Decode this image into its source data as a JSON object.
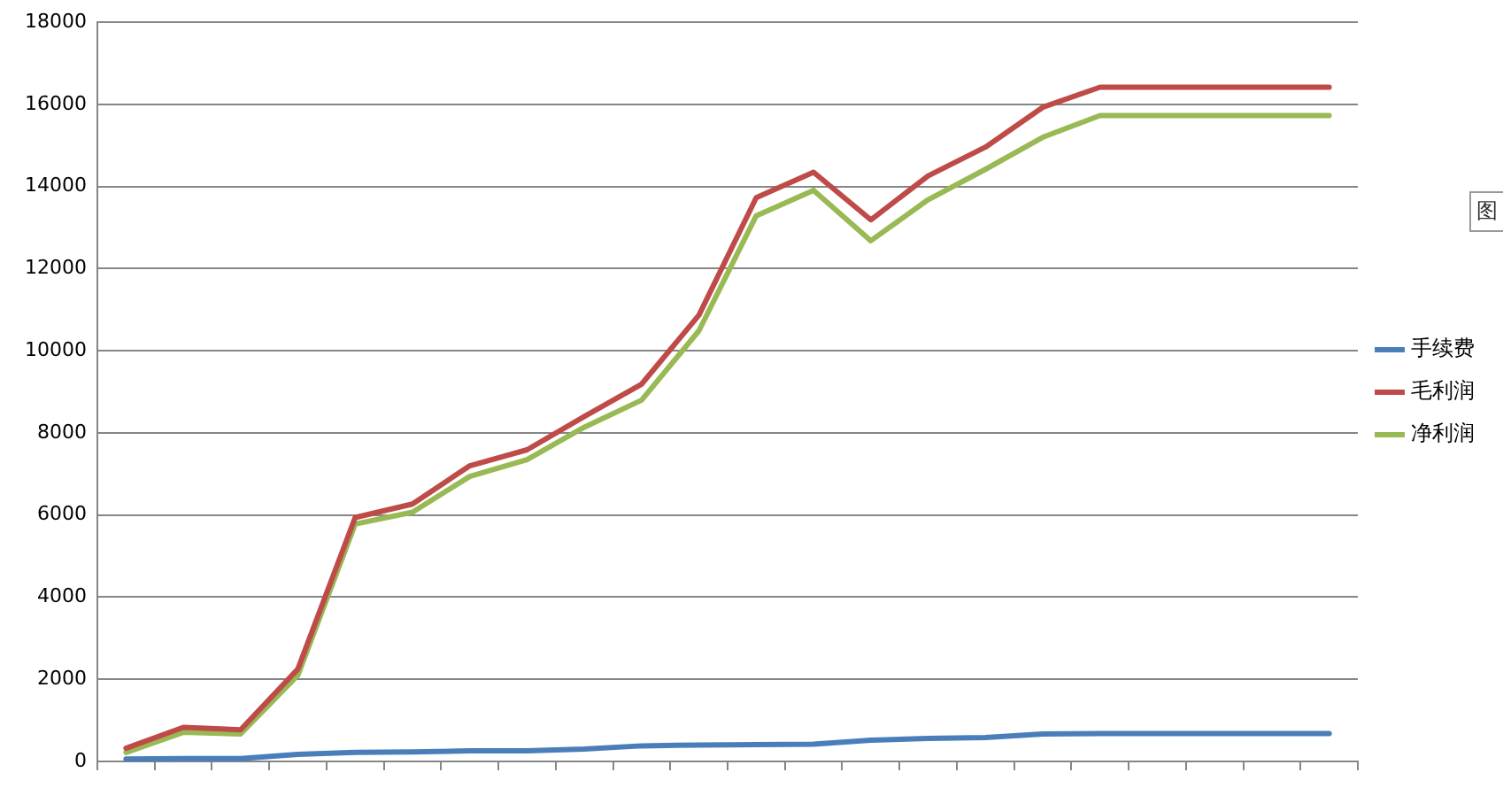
{
  "chart_data": {
    "type": "line",
    "categories": [
      null,
      null,
      null,
      null,
      null,
      null,
      null,
      null,
      null,
      null,
      null,
      null,
      null,
      null,
      null,
      null,
      null,
      null,
      null,
      null,
      null,
      null
    ],
    "series": [
      {
        "name": "手续费",
        "color": "#4a7ebb",
        "values": [
          60,
          70,
          70,
          170,
          220,
          230,
          260,
          260,
          300,
          380,
          400,
          410,
          420,
          520,
          560,
          580,
          670,
          680,
          680,
          680,
          680,
          680
        ]
      },
      {
        "name": "毛利润",
        "color": "#be4b48",
        "values": [
          320,
          830,
          770,
          2250,
          5940,
          6270,
          7200,
          7590,
          8400,
          9190,
          10870,
          13730,
          14350,
          13190,
          14260,
          14960,
          15930,
          16420,
          16420,
          16420,
          16420,
          16420
        ]
      },
      {
        "name": "净利润",
        "color": "#98b954",
        "values": [
          220,
          710,
          670,
          2100,
          5780,
          6070,
          6940,
          7350,
          8140,
          8800,
          10490,
          13290,
          13910,
          12680,
          13680,
          14420,
          15200,
          15730,
          15730,
          15730,
          15730,
          15730
        ]
      }
    ],
    "ylim": [
      0,
      18000
    ],
    "yticks": [
      0,
      2000,
      4000,
      6000,
      8000,
      10000,
      12000,
      14000,
      16000,
      18000
    ],
    "grid": "y",
    "legend": "right",
    "tick_labels": "y",
    "marker": "none",
    "line_style": "solid",
    "annotations": [
      "图"
    ]
  }
}
